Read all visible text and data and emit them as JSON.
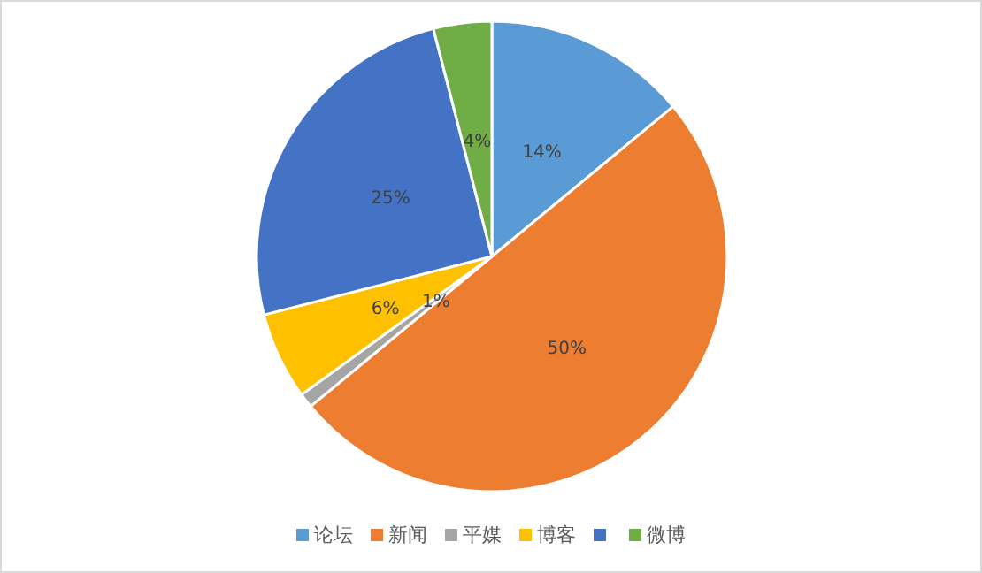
{
  "chart_data": {
    "type": "pie",
    "categories": [
      "论坛",
      "新闻",
      "平媒",
      "博客",
      null,
      "微博"
    ],
    "values": [
      14,
      50,
      1,
      6,
      25,
      4
    ],
    "colors": [
      "#5b9bd5",
      "#ed7d31",
      "#a5a5a5",
      "#ffc000",
      "#4472c4",
      "#70ad47"
    ],
    "value_labels": [
      "14%",
      "50%",
      "1%",
      "6%",
      "25%",
      "4%"
    ],
    "legend": "bottom"
  }
}
